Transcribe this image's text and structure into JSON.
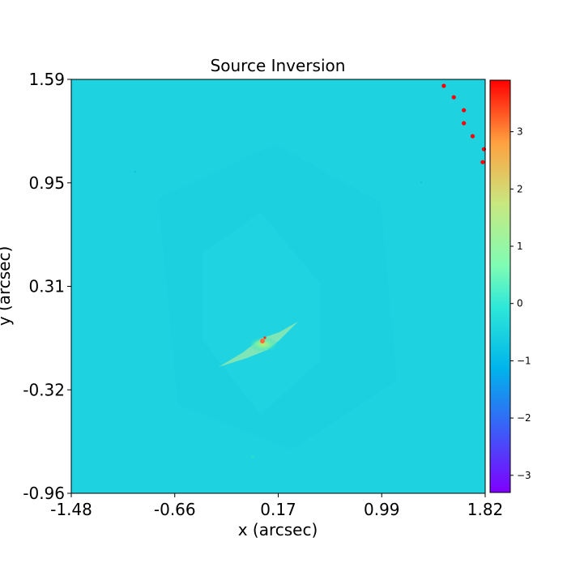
{
  "chart_data": {
    "type": "heatmap",
    "title": "Source Inversion",
    "xlabel": "x (arcsec)",
    "ylabel": "y (arcsec)",
    "x_ticks": [
      "-1.48",
      "-0.66",
      "0.17",
      "0.99",
      "1.82"
    ],
    "y_ticks": [
      "1.59",
      "0.95",
      "0.31",
      "-0.32",
      "-0.96"
    ],
    "xlim": [
      -1.48,
      1.82
    ],
    "ylim": [
      -0.96,
      1.59
    ],
    "colormap": "rainbow",
    "colorbar": {
      "ticks": [
        "3",
        "2",
        "1",
        "0",
        "−1",
        "−2",
        "−3"
      ],
      "range": [
        -3.3,
        3.9
      ]
    },
    "background_value": -0.7,
    "background_color": "#1ed2e0",
    "source_region": {
      "center": [
        0.07,
        -0.08
      ],
      "peak_value": 2.6,
      "extent_x": [
        -0.27,
        0.35
      ],
      "extent_y": [
        -0.18,
        0.22
      ]
    },
    "points": {
      "color": "#ff0000",
      "xy": [
        [
          1.49,
          1.55
        ],
        [
          1.57,
          1.48
        ],
        [
          1.65,
          1.4
        ],
        [
          1.65,
          1.32
        ],
        [
          1.72,
          1.24
        ],
        [
          1.81,
          1.16
        ],
        [
          1.8,
          1.08
        ]
      ]
    },
    "grid": false
  }
}
